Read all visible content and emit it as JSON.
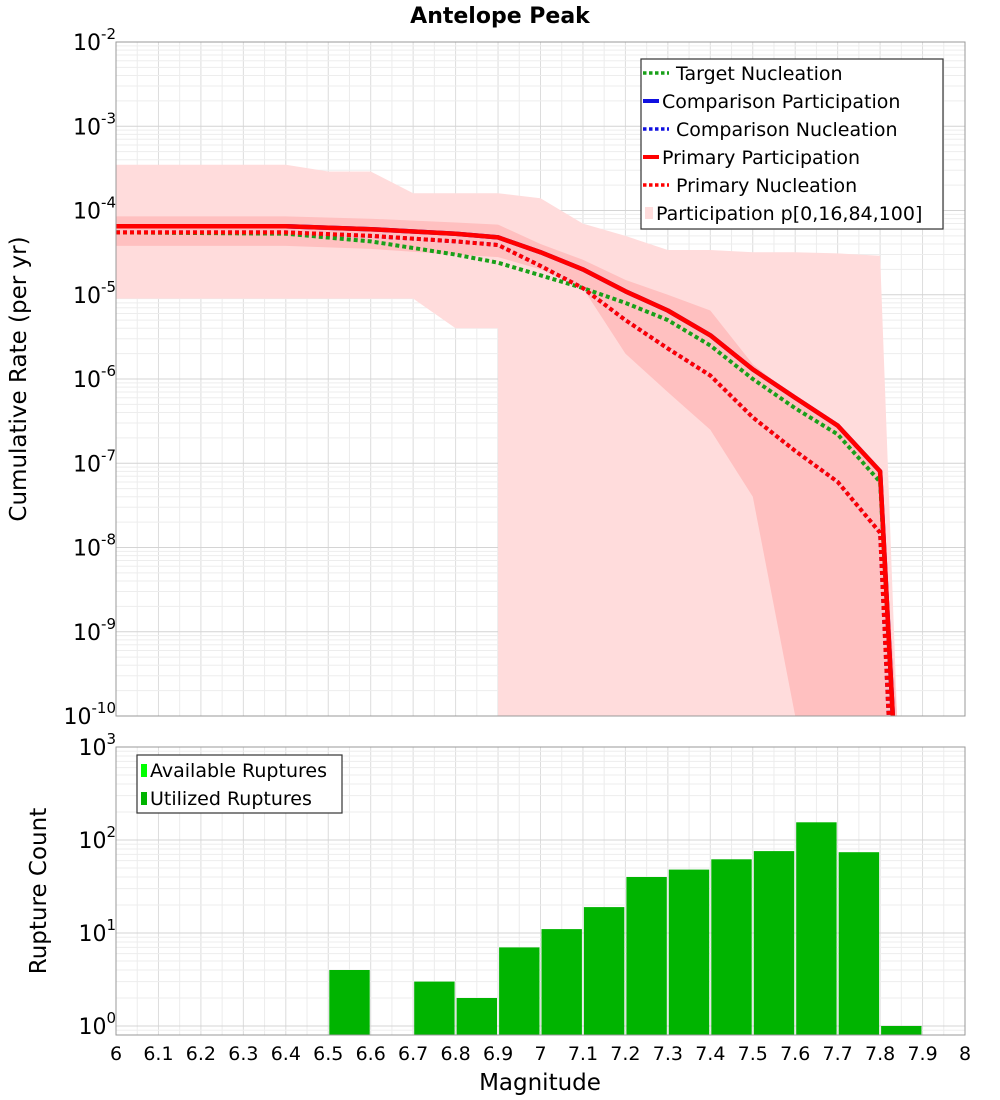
{
  "chart_data": [
    {
      "type": "line",
      "title": "Antelope Peak",
      "xlabel": "",
      "ylabel": "Cumulative Rate (per yr)",
      "xlim": [
        6,
        8
      ],
      "ylim": [
        1e-10,
        0.01
      ],
      "yscale": "log",
      "ytick_exponents": [
        -10,
        -9,
        -8,
        -7,
        -6,
        -5,
        -4,
        -3,
        -2
      ],
      "grid": true,
      "legend_position": "top-right",
      "legend": [
        "Target Nucleation",
        "Comparison Participation",
        "Comparison Nucleation",
        "Primary Participation",
        "Primary Nucleation",
        "Participation p[0,16,84,100]"
      ],
      "colors": {
        "target_nucleation": "#19a019",
        "comparison": "#1010e0",
        "primary": "#ff0000",
        "band_outer": "#ffdcdc",
        "band_inner": "#ffc0c0"
      },
      "bands": {
        "p0_100": {
          "x": [
            6.0,
            6.4,
            6.5,
            6.6,
            6.7,
            6.8,
            6.9,
            6.9,
            6.95,
            7.0,
            7.1,
            7.2,
            7.3,
            7.4,
            7.5,
            7.6,
            7.7,
            7.8,
            7.84
          ],
          "upper": [
            0.00035,
            0.00035,
            0.00029,
            0.00029,
            0.00016,
            0.00016,
            0.00016,
            0.00016,
            0.00015,
            0.00014,
            7e-05,
            5e-05,
            3.4e-05,
            3.4e-05,
            3.2e-05,
            3.2e-05,
            3.1e-05,
            2.9e-05,
            1e-10
          ],
          "lower": [
            9e-06,
            9e-06,
            9e-06,
            9e-06,
            9e-06,
            4e-06,
            4e-06,
            1e-10,
            1e-10,
            1e-10,
            1e-10,
            1e-10,
            1e-10,
            1e-10,
            1e-10,
            1e-10,
            1e-10,
            1e-10,
            1e-10
          ]
        },
        "p16_84": {
          "x": [
            6.0,
            6.4,
            6.6,
            6.8,
            6.9,
            7.0,
            7.1,
            7.2,
            7.3,
            7.4,
            7.5,
            7.6,
            7.7,
            7.8,
            7.84
          ],
          "upper": [
            8.5e-05,
            8.5e-05,
            8e-05,
            7.2e-05,
            6.8e-05,
            4e-05,
            2.6e-05,
            1.5e-05,
            1e-05,
            6.5e-06,
            1.5e-06,
            6e-07,
            3e-07,
            8e-08,
            1e-10
          ],
          "lower": [
            3.8e-05,
            3.8e-05,
            3.5e-05,
            3e-05,
            2.8e-05,
            2e-05,
            1.2e-05,
            2e-06,
            7e-07,
            2.5e-07,
            4e-08,
            1e-10,
            1e-10,
            1e-10,
            1e-10
          ]
        }
      },
      "series": [
        {
          "name": "Target Nucleation",
          "style": "dotted",
          "color": "#19a019",
          "x": [
            6.0,
            6.4,
            6.6,
            6.8,
            6.9,
            7.0,
            7.1,
            7.2,
            7.3,
            7.4,
            7.5,
            7.6,
            7.7,
            7.8,
            7.83
          ],
          "y": [
            5.5e-05,
            5.3e-05,
            4.3e-05,
            3e-05,
            2.4e-05,
            1.7e-05,
            1.2e-05,
            8e-06,
            5e-06,
            2.5e-06,
            1e-06,
            4.5e-07,
            2.2e-07,
            6e-08,
            1e-10
          ]
        },
        {
          "name": "Comparison Participation",
          "style": "solid",
          "color": "#1010e0",
          "x": [
            6.0,
            6.4,
            6.6,
            6.8,
            6.9,
            7.0,
            7.1,
            7.2,
            7.3,
            7.4,
            7.5,
            7.6,
            7.7,
            7.8,
            7.83
          ],
          "y": [
            6.5e-05,
            6.5e-05,
            6e-05,
            5.3e-05,
            4.8e-05,
            3.2e-05,
            2e-05,
            1.1e-05,
            6.5e-06,
            3.3e-06,
            1.3e-06,
            6e-07,
            2.8e-07,
            8e-08,
            1e-10
          ]
        },
        {
          "name": "Comparison Nucleation",
          "style": "dotted",
          "color": "#1010e0",
          "x": [
            6.0,
            6.4,
            6.6,
            6.8,
            6.9,
            7.0,
            7.1,
            7.2,
            7.3,
            7.4,
            7.5,
            7.6,
            7.7,
            7.8,
            7.82
          ],
          "y": [
            5.5e-05,
            5.5e-05,
            5e-05,
            4.3e-05,
            3.9e-05,
            2.2e-05,
            1.2e-05,
            5e-06,
            2.3e-06,
            1.1e-06,
            3.5e-07,
            1.4e-07,
            6e-08,
            1.5e-08,
            1e-10
          ]
        },
        {
          "name": "Primary Participation",
          "style": "solid",
          "color": "#ff0000",
          "x": [
            6.0,
            6.4,
            6.6,
            6.8,
            6.9,
            7.0,
            7.1,
            7.2,
            7.3,
            7.4,
            7.5,
            7.6,
            7.7,
            7.8,
            7.83
          ],
          "y": [
            6.5e-05,
            6.5e-05,
            6e-05,
            5.3e-05,
            4.8e-05,
            3.2e-05,
            2e-05,
            1.1e-05,
            6.5e-06,
            3.3e-06,
            1.3e-06,
            6e-07,
            2.8e-07,
            8e-08,
            1e-10
          ]
        },
        {
          "name": "Primary Nucleation",
          "style": "dotted",
          "color": "#ff0000",
          "x": [
            6.0,
            6.4,
            6.6,
            6.8,
            6.9,
            7.0,
            7.1,
            7.2,
            7.3,
            7.4,
            7.5,
            7.6,
            7.7,
            7.8,
            7.82
          ],
          "y": [
            5.5e-05,
            5.5e-05,
            5e-05,
            4.3e-05,
            3.9e-05,
            2.2e-05,
            1.2e-05,
            5e-06,
            2.3e-06,
            1.1e-06,
            3.5e-07,
            1.4e-07,
            6e-08,
            1.5e-08,
            1e-10
          ]
        }
      ]
    },
    {
      "type": "bar",
      "title": "",
      "xlabel": "Magnitude",
      "ylabel": "Rupture Count",
      "xlim": [
        6,
        8
      ],
      "ylim": [
        0.8,
        1000
      ],
      "yscale": "log",
      "ytick_exponents": [
        0,
        1,
        2,
        3
      ],
      "xticks": [
        "6",
        "6.1",
        "6.2",
        "6.3",
        "6.4",
        "6.5",
        "6.6",
        "6.7",
        "6.8",
        "6.9",
        "7",
        "7.1",
        "7.2",
        "7.3",
        "7.4",
        "7.5",
        "7.6",
        "7.7",
        "7.8",
        "7.9",
        "8"
      ],
      "grid": true,
      "legend_position": "top-left",
      "legend": [
        "Available Ruptures",
        "Utilized Ruptures"
      ],
      "colors": {
        "available": "#00ff00",
        "utilized": "#00b400"
      },
      "bin_width": 0.1,
      "bin_starts": [
        6.5,
        6.7,
        6.8,
        6.9,
        7.0,
        7.1,
        7.2,
        7.3,
        7.4,
        7.5,
        7.6,
        7.7,
        7.8
      ],
      "series": [
        {
          "name": "Available Ruptures",
          "values": [
            4,
            3,
            2,
            7,
            11,
            19,
            40,
            48,
            62,
            76,
            155,
            74,
            1
          ]
        },
        {
          "name": "Utilized Ruptures",
          "values": [
            4,
            3,
            2,
            7,
            11,
            19,
            40,
            48,
            62,
            76,
            155,
            74,
            1
          ]
        }
      ]
    }
  ]
}
